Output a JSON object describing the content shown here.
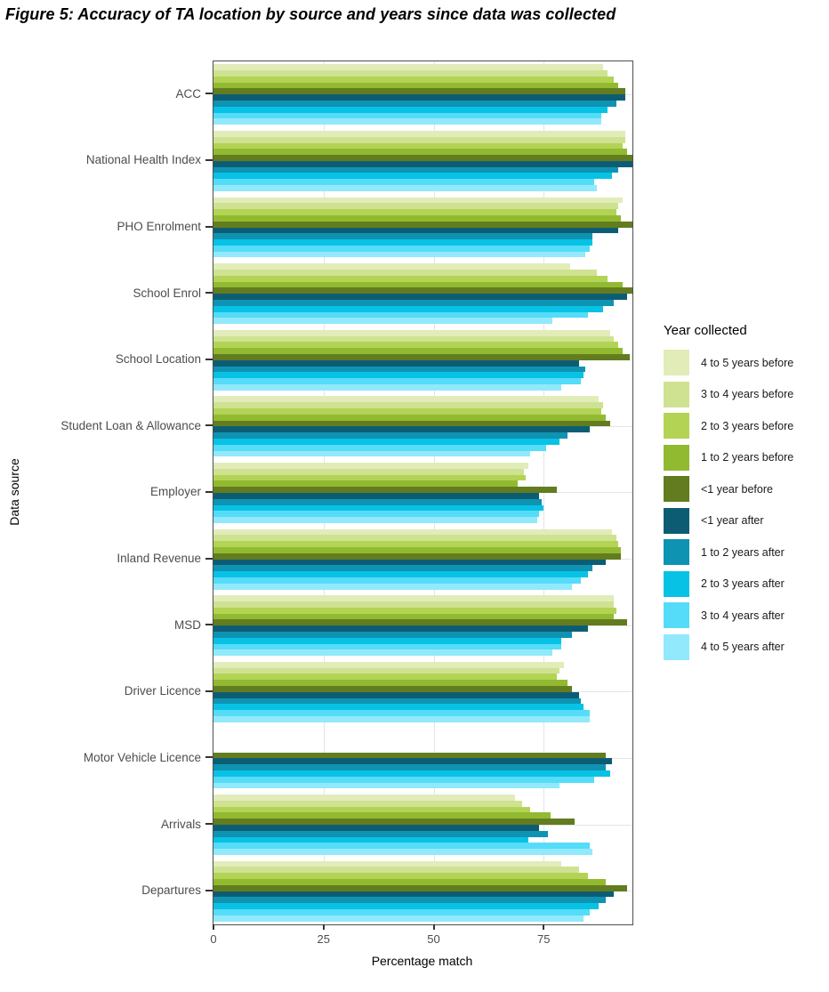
{
  "figure": {
    "title": "Figure 5: Accuracy of TA location by source and years since data was collected"
  },
  "chart_data": {
    "type": "bar",
    "orientation": "horizontal",
    "title": "Figure 5: Accuracy of TA location by source and years since data was collected",
    "xlabel": "Percentage match",
    "ylabel": "Data source",
    "xlim": [
      0,
      95.4
    ],
    "x_ticks": [
      0,
      25,
      50,
      75
    ],
    "grid": true,
    "legend": {
      "title": "Year collected",
      "position": "right"
    },
    "series": [
      "4 to 5 years before",
      "3 to 4 years before",
      "2 to 3 years before",
      "1 to 2 years before",
      "<1 year before",
      "<1 year after",
      "1 to 2 years after",
      "2 to 3 years after",
      "3 to 4 years after",
      "4 to 5 years after"
    ],
    "colors": [
      "#e1ecb9",
      "#cfe292",
      "#b3d355",
      "#92ba30",
      "#627c1f",
      "#0c5d73",
      "#0e93b2",
      "#07c2e4",
      "#55dcf8",
      "#91e9fb"
    ],
    "groups": [
      {
        "label": "ACC",
        "values": [
          88.5,
          89.5,
          91,
          92,
          93.5,
          93.5,
          91.5,
          89.5,
          88,
          88
        ]
      },
      {
        "label": "National Health Index",
        "values": [
          93.5,
          93.5,
          93,
          94,
          95.5,
          95.5,
          92,
          90.5,
          86.5,
          87
        ]
      },
      {
        "label": "PHO Enrolment",
        "values": [
          93,
          92,
          91.5,
          92.5,
          95.5,
          92,
          86,
          86,
          85.5,
          84.5
        ]
      },
      {
        "label": "School Enrol",
        "values": [
          81,
          87,
          89.5,
          93,
          95.5,
          94,
          91,
          88.5,
          85,
          77
        ]
      },
      {
        "label": "School Location",
        "values": [
          90,
          91,
          92,
          93,
          94.5,
          83,
          84.5,
          84,
          83.5,
          79
        ]
      },
      {
        "label": "Student Loan & Allowance",
        "values": [
          87.5,
          88.5,
          88,
          89,
          90,
          85.5,
          80.5,
          78.5,
          75.5,
          72
        ]
      },
      {
        "label": "Employer",
        "values": [
          71.5,
          70.5,
          71,
          69,
          78,
          74,
          74.5,
          75,
          74,
          73.5
        ]
      },
      {
        "label": "Inland Revenue",
        "values": [
          90.5,
          91.5,
          92,
          92.5,
          92.5,
          89,
          86,
          85,
          83.5,
          81.5
        ]
      },
      {
        "label": "MSD",
        "values": [
          91,
          91,
          91.5,
          91,
          94,
          85,
          81.5,
          79,
          79,
          77
        ]
      },
      {
        "label": "Driver Licence",
        "values": [
          79.5,
          78.5,
          78,
          80.5,
          81.5,
          83,
          83.5,
          84,
          85.5,
          85.5
        ]
      },
      {
        "label": "Motor Vehicle Licence",
        "values": [
          null,
          null,
          null,
          null,
          89,
          90.5,
          89,
          90,
          86.5,
          78.5
        ]
      },
      {
        "label": "Arrivals",
        "values": [
          68.5,
          70,
          72,
          76.5,
          82,
          74,
          76,
          71.5,
          85.5,
          86
        ]
      },
      {
        "label": "Departures",
        "values": [
          79,
          83,
          85,
          89,
          94,
          91,
          89,
          87.5,
          85.5,
          84
        ]
      }
    ]
  }
}
